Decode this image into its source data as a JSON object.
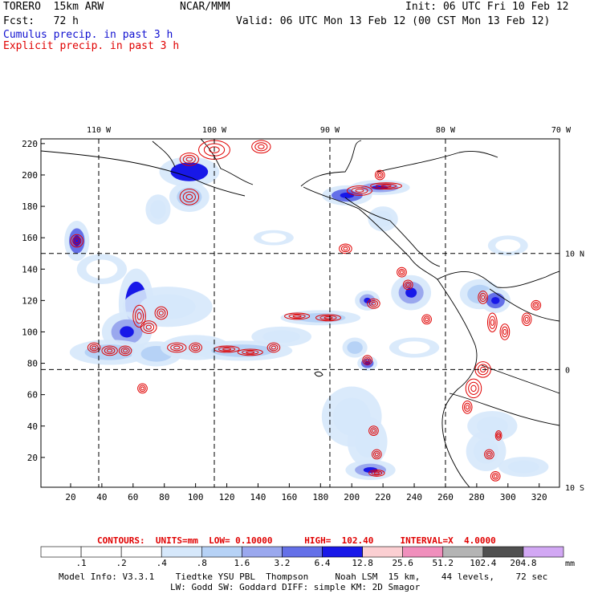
{
  "header": {
    "model": "TORERO  15km ARW",
    "org": "NCAR/MMM",
    "init": "Init: 06 UTC Fri 10 Feb 12",
    "fcst": "Fcst:   72 h",
    "valid": "Valid: 06 UTC Mon 13 Feb 12 (00 CST Mon 13 Feb 12)",
    "field1": "Cumulus precip. in past 3 h",
    "field2": "Explicit precip. in past 3 h"
  },
  "colors": {
    "field1": "#1010d0",
    "field2": "#e00000",
    "coast": "#000000",
    "contour": "#e00000"
  },
  "chart_data": {
    "type": "heatmap",
    "title": "Cumulus precip. in past 3 h / Explicit precip. in past 3 h",
    "xlabel": "",
    "ylabel": "",
    "xlim": [
      1,
      333
    ],
    "ylim": [
      1,
      223
    ],
    "x_ticks": [
      20,
      40,
      60,
      80,
      100,
      120,
      140,
      160,
      180,
      200,
      220,
      240,
      260,
      280,
      300,
      320
    ],
    "y_ticks": [
      20,
      40,
      60,
      80,
      100,
      120,
      140,
      160,
      180,
      200,
      220
    ],
    "top_labels": [
      {
        "x": 38,
        "label": "110 W"
      },
      {
        "x": 112,
        "label": "100 W"
      },
      {
        "x": 186,
        "label": "90 W"
      },
      {
        "x": 260,
        "label": "80 W"
      },
      {
        "x": 334,
        "label": "70 W"
      }
    ],
    "right_labels": [
      {
        "y": 150,
        "label": "10 N"
      },
      {
        "y": 76,
        "label": "0"
      },
      {
        "y": 1,
        "label": "10 S"
      }
    ],
    "grid_x": [
      38,
      112,
      186,
      260
    ],
    "grid_y": [
      76,
      150
    ],
    "contour_info": {
      "text": "CONTOURS:  UNITS=mm  LOW= 0.10000      HIGH=  102.40     INTERVAL=X  4.0000"
    },
    "colorbar": {
      "levels": [
        ".1",
        ".2",
        ".4",
        ".8",
        "1.6",
        "3.2",
        "6.4",
        "12.8",
        "25.6",
        "51.2",
        "102.4",
        "204.8"
      ],
      "colors": [
        "#ffffff",
        "#ffffff",
        "#ffffff",
        "#d6e8fb",
        "#b6d2f6",
        "#9aa8ee",
        "#6470e8",
        "#1818e8",
        "#fbcfd2",
        "#f08fbc",
        "#b4b4b4",
        "#505050",
        "#d2a8f4"
      ],
      "unit": "mm"
    },
    "cumulus_areas": [
      {
        "x": 24,
        "y": 158,
        "rx": 5,
        "ry": 8,
        "i": 6
      },
      {
        "x": 62,
        "y": 118,
        "rx": 7,
        "ry": 14,
        "i": 7
      },
      {
        "x": 82,
        "y": 116,
        "rx": 18,
        "ry": 8,
        "i": 3
      },
      {
        "x": 56,
        "y": 100,
        "rx": 10,
        "ry": 8,
        "i": 5
      },
      {
        "x": 45,
        "y": 87,
        "rx": 16,
        "ry": 5,
        "i": 4
      },
      {
        "x": 75,
        "y": 86,
        "rx": 10,
        "ry": 5,
        "i": 4
      },
      {
        "x": 100,
        "y": 90,
        "rx": 14,
        "ry": 5,
        "i": 3
      },
      {
        "x": 130,
        "y": 88,
        "rx": 20,
        "ry": 4,
        "i": 4
      },
      {
        "x": 155,
        "y": 97,
        "rx": 12,
        "ry": 4,
        "i": 3
      },
      {
        "x": 180,
        "y": 109,
        "rx": 16,
        "ry": 3,
        "i": 4
      },
      {
        "x": 96,
        "y": 202,
        "rx": 12,
        "ry": 6,
        "i": 7
      },
      {
        "x": 96,
        "y": 186,
        "rx": 8,
        "ry": 6,
        "i": 4
      },
      {
        "x": 76,
        "y": 178,
        "rx": 5,
        "ry": 6,
        "i": 3
      },
      {
        "x": 197,
        "y": 187,
        "rx": 10,
        "ry": 4,
        "i": 6
      },
      {
        "x": 218,
        "y": 192,
        "rx": 12,
        "ry": 3,
        "i": 5
      },
      {
        "x": 220,
        "y": 172,
        "rx": 6,
        "ry": 5,
        "i": 3
      },
      {
        "x": 210,
        "y": 120,
        "rx": 5,
        "ry": 4,
        "i": 5
      },
      {
        "x": 238,
        "y": 125,
        "rx": 8,
        "ry": 7,
        "i": 5
      },
      {
        "x": 282,
        "y": 124,
        "rx": 8,
        "ry": 6,
        "i": 4
      },
      {
        "x": 292,
        "y": 120,
        "rx": 6,
        "ry": 5,
        "i": 6
      },
      {
        "x": 202,
        "y": 90,
        "rx": 5,
        "ry": 4,
        "i": 4
      },
      {
        "x": 210,
        "y": 80,
        "rx": 4,
        "ry": 3,
        "i": 6
      },
      {
        "x": 200,
        "y": 46,
        "rx": 12,
        "ry": 12,
        "i": 3
      },
      {
        "x": 210,
        "y": 30,
        "rx": 8,
        "ry": 10,
        "i": 3
      },
      {
        "x": 212,
        "y": 12,
        "rx": 10,
        "ry": 4,
        "i": 5
      },
      {
        "x": 290,
        "y": 40,
        "rx": 10,
        "ry": 6,
        "i": 3
      },
      {
        "x": 286,
        "y": 24,
        "rx": 8,
        "ry": 8,
        "i": 3
      },
      {
        "x": 310,
        "y": 14,
        "rx": 10,
        "ry": 4,
        "i": 3
      },
      {
        "x": 300,
        "y": 155,
        "rx": 8,
        "ry": 4,
        "i": 2
      },
      {
        "x": 40,
        "y": 140,
        "rx": 10,
        "ry": 6,
        "i": 2
      },
      {
        "x": 150,
        "y": 160,
        "rx": 8,
        "ry": 3,
        "i": 2
      },
      {
        "x": 240,
        "y": 90,
        "rx": 10,
        "ry": 4,
        "i": 2
      }
    ],
    "explicit_areas": [
      {
        "x": 24,
        "y": 158,
        "rx": 4,
        "ry": 4
      },
      {
        "x": 35,
        "y": 90,
        "rx": 4,
        "ry": 3
      },
      {
        "x": 45,
        "y": 88,
        "rx": 5,
        "ry": 3
      },
      {
        "x": 55,
        "y": 88,
        "rx": 4,
        "ry": 3
      },
      {
        "x": 64,
        "y": 110,
        "rx": 4,
        "ry": 7
      },
      {
        "x": 70,
        "y": 103,
        "rx": 5,
        "ry": 4
      },
      {
        "x": 78,
        "y": 112,
        "rx": 4,
        "ry": 4
      },
      {
        "x": 88,
        "y": 90,
        "rx": 6,
        "ry": 3
      },
      {
        "x": 100,
        "y": 90,
        "rx": 4,
        "ry": 3
      },
      {
        "x": 120,
        "y": 89,
        "rx": 8,
        "ry": 2
      },
      {
        "x": 135,
        "y": 87,
        "rx": 8,
        "ry": 2
      },
      {
        "x": 150,
        "y": 90,
        "rx": 4,
        "ry": 3
      },
      {
        "x": 165,
        "y": 110,
        "rx": 8,
        "ry": 2
      },
      {
        "x": 185,
        "y": 109,
        "rx": 8,
        "ry": 2
      },
      {
        "x": 96,
        "y": 186,
        "rx": 6,
        "ry": 5
      },
      {
        "x": 96,
        "y": 210,
        "rx": 6,
        "ry": 4
      },
      {
        "x": 112,
        "y": 216,
        "rx": 10,
        "ry": 6
      },
      {
        "x": 142,
        "y": 218,
        "rx": 6,
        "ry": 4
      },
      {
        "x": 205,
        "y": 190,
        "rx": 8,
        "ry": 3
      },
      {
        "x": 222,
        "y": 193,
        "rx": 10,
        "ry": 2
      },
      {
        "x": 232,
        "y": 138,
        "rx": 3,
        "ry": 3
      },
      {
        "x": 236,
        "y": 130,
        "rx": 3,
        "ry": 3
      },
      {
        "x": 214,
        "y": 118,
        "rx": 4,
        "ry": 3
      },
      {
        "x": 210,
        "y": 82,
        "rx": 3,
        "ry": 3
      },
      {
        "x": 196,
        "y": 153,
        "rx": 4,
        "ry": 3
      },
      {
        "x": 284,
        "y": 122,
        "rx": 3,
        "ry": 4
      },
      {
        "x": 290,
        "y": 106,
        "rx": 3,
        "ry": 6
      },
      {
        "x": 298,
        "y": 100,
        "rx": 3,
        "ry": 5
      },
      {
        "x": 312,
        "y": 108,
        "rx": 3,
        "ry": 4
      },
      {
        "x": 318,
        "y": 117,
        "rx": 3,
        "ry": 3
      },
      {
        "x": 284,
        "y": 76,
        "rx": 5,
        "ry": 5
      },
      {
        "x": 278,
        "y": 64,
        "rx": 5,
        "ry": 6
      },
      {
        "x": 274,
        "y": 52,
        "rx": 3,
        "ry": 4
      },
      {
        "x": 214,
        "y": 37,
        "rx": 3,
        "ry": 3
      },
      {
        "x": 216,
        "y": 22,
        "rx": 3,
        "ry": 3
      },
      {
        "x": 216,
        "y": 10,
        "rx": 5,
        "ry": 2
      },
      {
        "x": 288,
        "y": 22,
        "rx": 3,
        "ry": 3
      },
      {
        "x": 294,
        "y": 34,
        "rx": 2,
        "ry": 3
      },
      {
        "x": 292,
        "y": 8,
        "rx": 3,
        "ry": 3
      },
      {
        "x": 66,
        "y": 64,
        "rx": 3,
        "ry": 3
      },
      {
        "x": 218,
        "y": 200,
        "rx": 3,
        "ry": 3
      },
      {
        "x": 248,
        "y": 108,
        "rx": 3,
        "ry": 3
      }
    ]
  },
  "footer": {
    "model_info": "Model Info: V3.3.1    Tiedtke YSU PBL  Thompson     Noah LSM  15 km,    44 levels,    72 sec",
    "physics": "LW: Godd SW: Goddard DIFF: simple KM: 2D Smagor"
  }
}
